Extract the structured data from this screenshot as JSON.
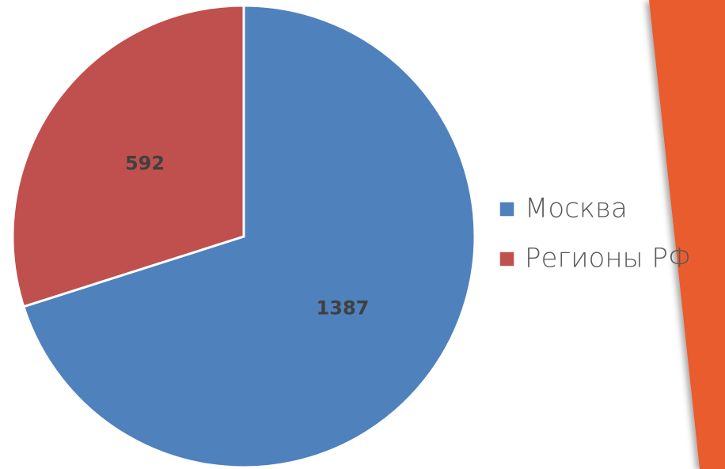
{
  "chart_data": {
    "type": "pie",
    "categories": [
      "Москва",
      "Регионы РФ"
    ],
    "values": [
      1387,
      592
    ],
    "colors": [
      "#4f81bd",
      "#c0504d"
    ],
    "legend": "right"
  }
}
